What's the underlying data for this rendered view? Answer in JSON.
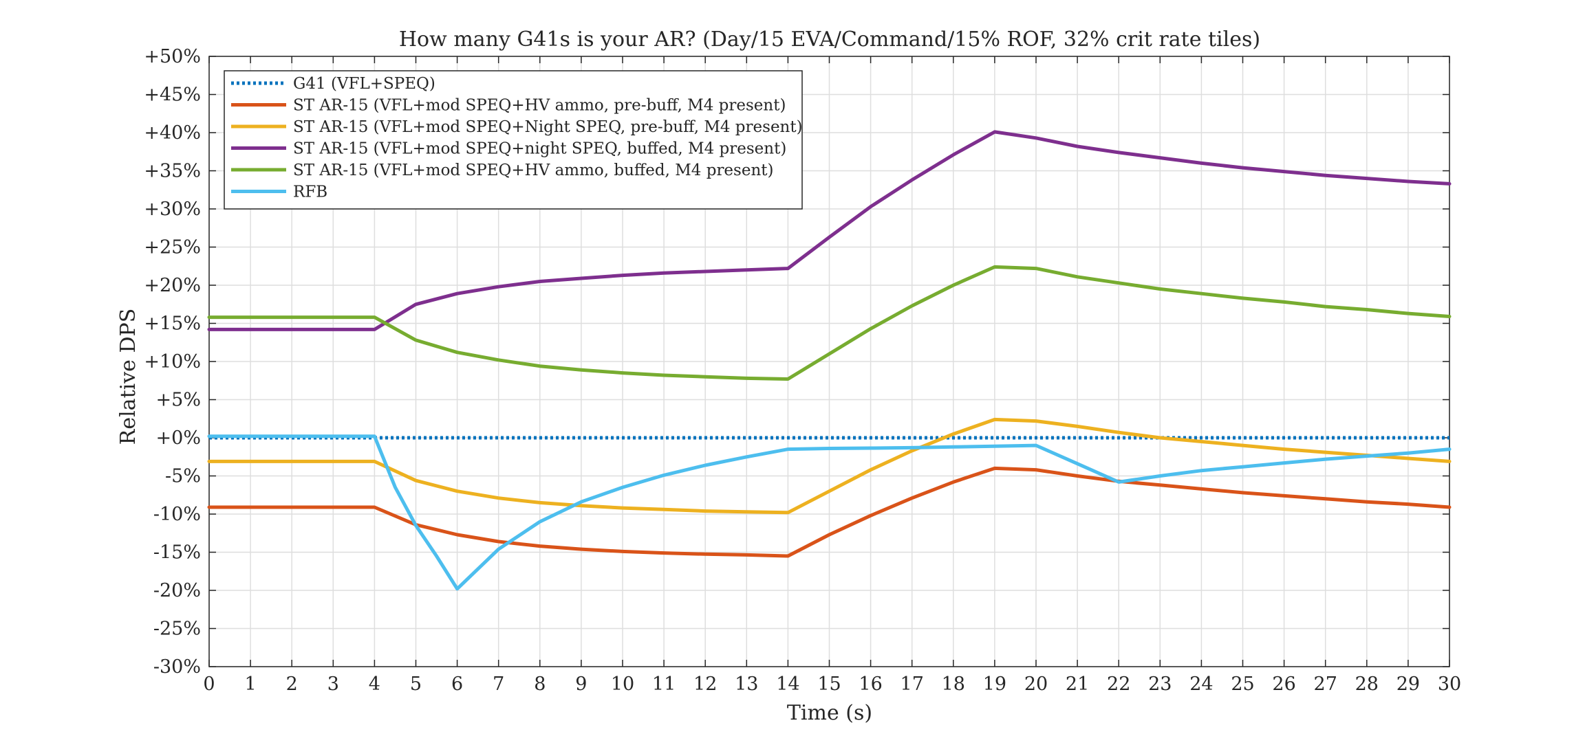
{
  "chart_data": {
    "type": "line",
    "title": "How many G41s is your AR? (Day/15 EVA/Command/15% ROF, 32% crit rate tiles)",
    "xlabel": "Time (s)",
    "ylabel": "Relative DPS",
    "xlim": [
      0,
      30
    ],
    "ylim": [
      -30,
      50
    ],
    "x_ticks": [
      0,
      1,
      2,
      3,
      4,
      5,
      6,
      7,
      8,
      9,
      10,
      11,
      12,
      13,
      14,
      15,
      16,
      17,
      18,
      19,
      20,
      21,
      22,
      23,
      24,
      25,
      26,
      27,
      28,
      29,
      30
    ],
    "x_tick_labels": [
      "0",
      "1",
      "2",
      "3",
      "4",
      "5",
      "6",
      "7",
      "8",
      "9",
      "10",
      "11",
      "12",
      "13",
      "14",
      "15",
      "16",
      "17",
      "18",
      "19",
      "20",
      "21",
      "22",
      "23",
      "24",
      "25",
      "26",
      "27",
      "28",
      "29",
      "30"
    ],
    "y_ticks": [
      -30,
      -25,
      -20,
      -15,
      -10,
      -5,
      0,
      5,
      10,
      15,
      20,
      25,
      30,
      35,
      40,
      45,
      50
    ],
    "y_tick_labels": [
      "-30%",
      "-25%",
      "-20%",
      "-15%",
      "-10%",
      "-5%",
      "+0%",
      "+5%",
      "+10%",
      "+15%",
      "+20%",
      "+25%",
      "+30%",
      "+35%",
      "+40%",
      "+45%",
      "+50%"
    ],
    "grid": true,
    "legend_position": "top-left",
    "series": [
      {
        "name": "G41 (VFL+SPEQ)",
        "color": "#0072BD",
        "style": "dotted",
        "x": [
          0,
          30
        ],
        "y": [
          0,
          0
        ]
      },
      {
        "name": "ST AR-15 (VFL+mod SPEQ+HV ammo, pre-buff, M4 present)",
        "color": "#D95319",
        "style": "solid",
        "x": [
          0,
          4,
          5,
          6,
          7,
          8,
          9,
          10,
          11,
          12,
          13,
          14,
          15,
          16,
          17,
          18,
          19,
          20,
          21,
          22,
          23,
          24,
          25,
          26,
          27,
          28,
          29,
          30
        ],
        "y": [
          -9.1,
          -9.1,
          -11.4,
          -12.7,
          -13.6,
          -14.2,
          -14.6,
          -14.9,
          -15.1,
          -15.25,
          -15.35,
          -15.5,
          -12.7,
          -10.2,
          -7.9,
          -5.8,
          -4.0,
          -4.2,
          -5.0,
          -5.7,
          -6.2,
          -6.7,
          -7.2,
          -7.6,
          -8.0,
          -8.4,
          -8.7,
          -9.1
        ]
      },
      {
        "name": "ST AR-15 (VFL+mod SPEQ+Night SPEQ, pre-buff, M4 present)",
        "color": "#EDB120",
        "style": "solid",
        "x": [
          0,
          4,
          5,
          6,
          7,
          8,
          9,
          10,
          11,
          12,
          13,
          14,
          15,
          16,
          17,
          18,
          19,
          20,
          21,
          22,
          23,
          24,
          25,
          26,
          27,
          28,
          29,
          30
        ],
        "y": [
          -3.1,
          -3.1,
          -5.6,
          -7.0,
          -7.9,
          -8.5,
          -8.9,
          -9.2,
          -9.4,
          -9.6,
          -9.7,
          -9.8,
          -7.0,
          -4.2,
          -1.7,
          0.5,
          2.4,
          2.2,
          1.5,
          0.7,
          0.0,
          -0.5,
          -1.0,
          -1.5,
          -1.9,
          -2.3,
          -2.7,
          -3.1
        ]
      },
      {
        "name": "ST AR-15 (VFL+mod SPEQ+night SPEQ, buffed, M4 present)",
        "color": "#7E2F8E",
        "style": "solid",
        "x": [
          0,
          4,
          5,
          6,
          7,
          8,
          9,
          10,
          11,
          12,
          13,
          14,
          15,
          16,
          17,
          18,
          19,
          20,
          21,
          22,
          23,
          24,
          25,
          26,
          27,
          28,
          29,
          30
        ],
        "y": [
          14.2,
          14.2,
          17.5,
          18.9,
          19.8,
          20.5,
          20.9,
          21.3,
          21.6,
          21.8,
          22.0,
          22.2,
          26.3,
          30.3,
          33.8,
          37.1,
          40.1,
          39.3,
          38.2,
          37.4,
          36.7,
          36.0,
          35.4,
          34.9,
          34.4,
          34.0,
          33.6,
          33.3
        ]
      },
      {
        "name": "ST AR-15 (VFL+mod SPEQ+HV ammo, buffed, M4 present)",
        "color": "#77AC30",
        "style": "solid",
        "x": [
          0,
          4,
          5,
          6,
          7,
          8,
          9,
          10,
          11,
          12,
          13,
          14,
          15,
          16,
          17,
          18,
          19,
          20,
          21,
          22,
          23,
          24,
          25,
          26,
          27,
          28,
          29,
          30
        ],
        "y": [
          15.8,
          15.8,
          12.8,
          11.2,
          10.2,
          9.4,
          8.9,
          8.5,
          8.2,
          8.0,
          7.8,
          7.7,
          11.0,
          14.3,
          17.3,
          20.0,
          22.4,
          22.2,
          21.1,
          20.3,
          19.5,
          18.9,
          18.3,
          17.8,
          17.2,
          16.8,
          16.3,
          15.9
        ]
      },
      {
        "name": "RFB",
        "color": "#4DBEEE",
        "style": "solid",
        "x": [
          0,
          4,
          4.5,
          5,
          5.5,
          6,
          7,
          8,
          9,
          10,
          11,
          12,
          13,
          14,
          15,
          16,
          17,
          18,
          19,
          20,
          21,
          22,
          23,
          24,
          25,
          26,
          27,
          28,
          29,
          30
        ],
        "y": [
          0.2,
          0.2,
          -6.5,
          -11.5,
          -15.5,
          -19.8,
          -14.6,
          -11.0,
          -8.4,
          -6.5,
          -4.9,
          -3.6,
          -2.5,
          -1.5,
          -1.4,
          -1.35,
          -1.3,
          -1.2,
          -1.1,
          -1.0,
          -3.4,
          -5.8,
          -5.0,
          -4.3,
          -3.8,
          -3.3,
          -2.8,
          -2.4,
          -2.0,
          -1.5
        ]
      }
    ]
  }
}
